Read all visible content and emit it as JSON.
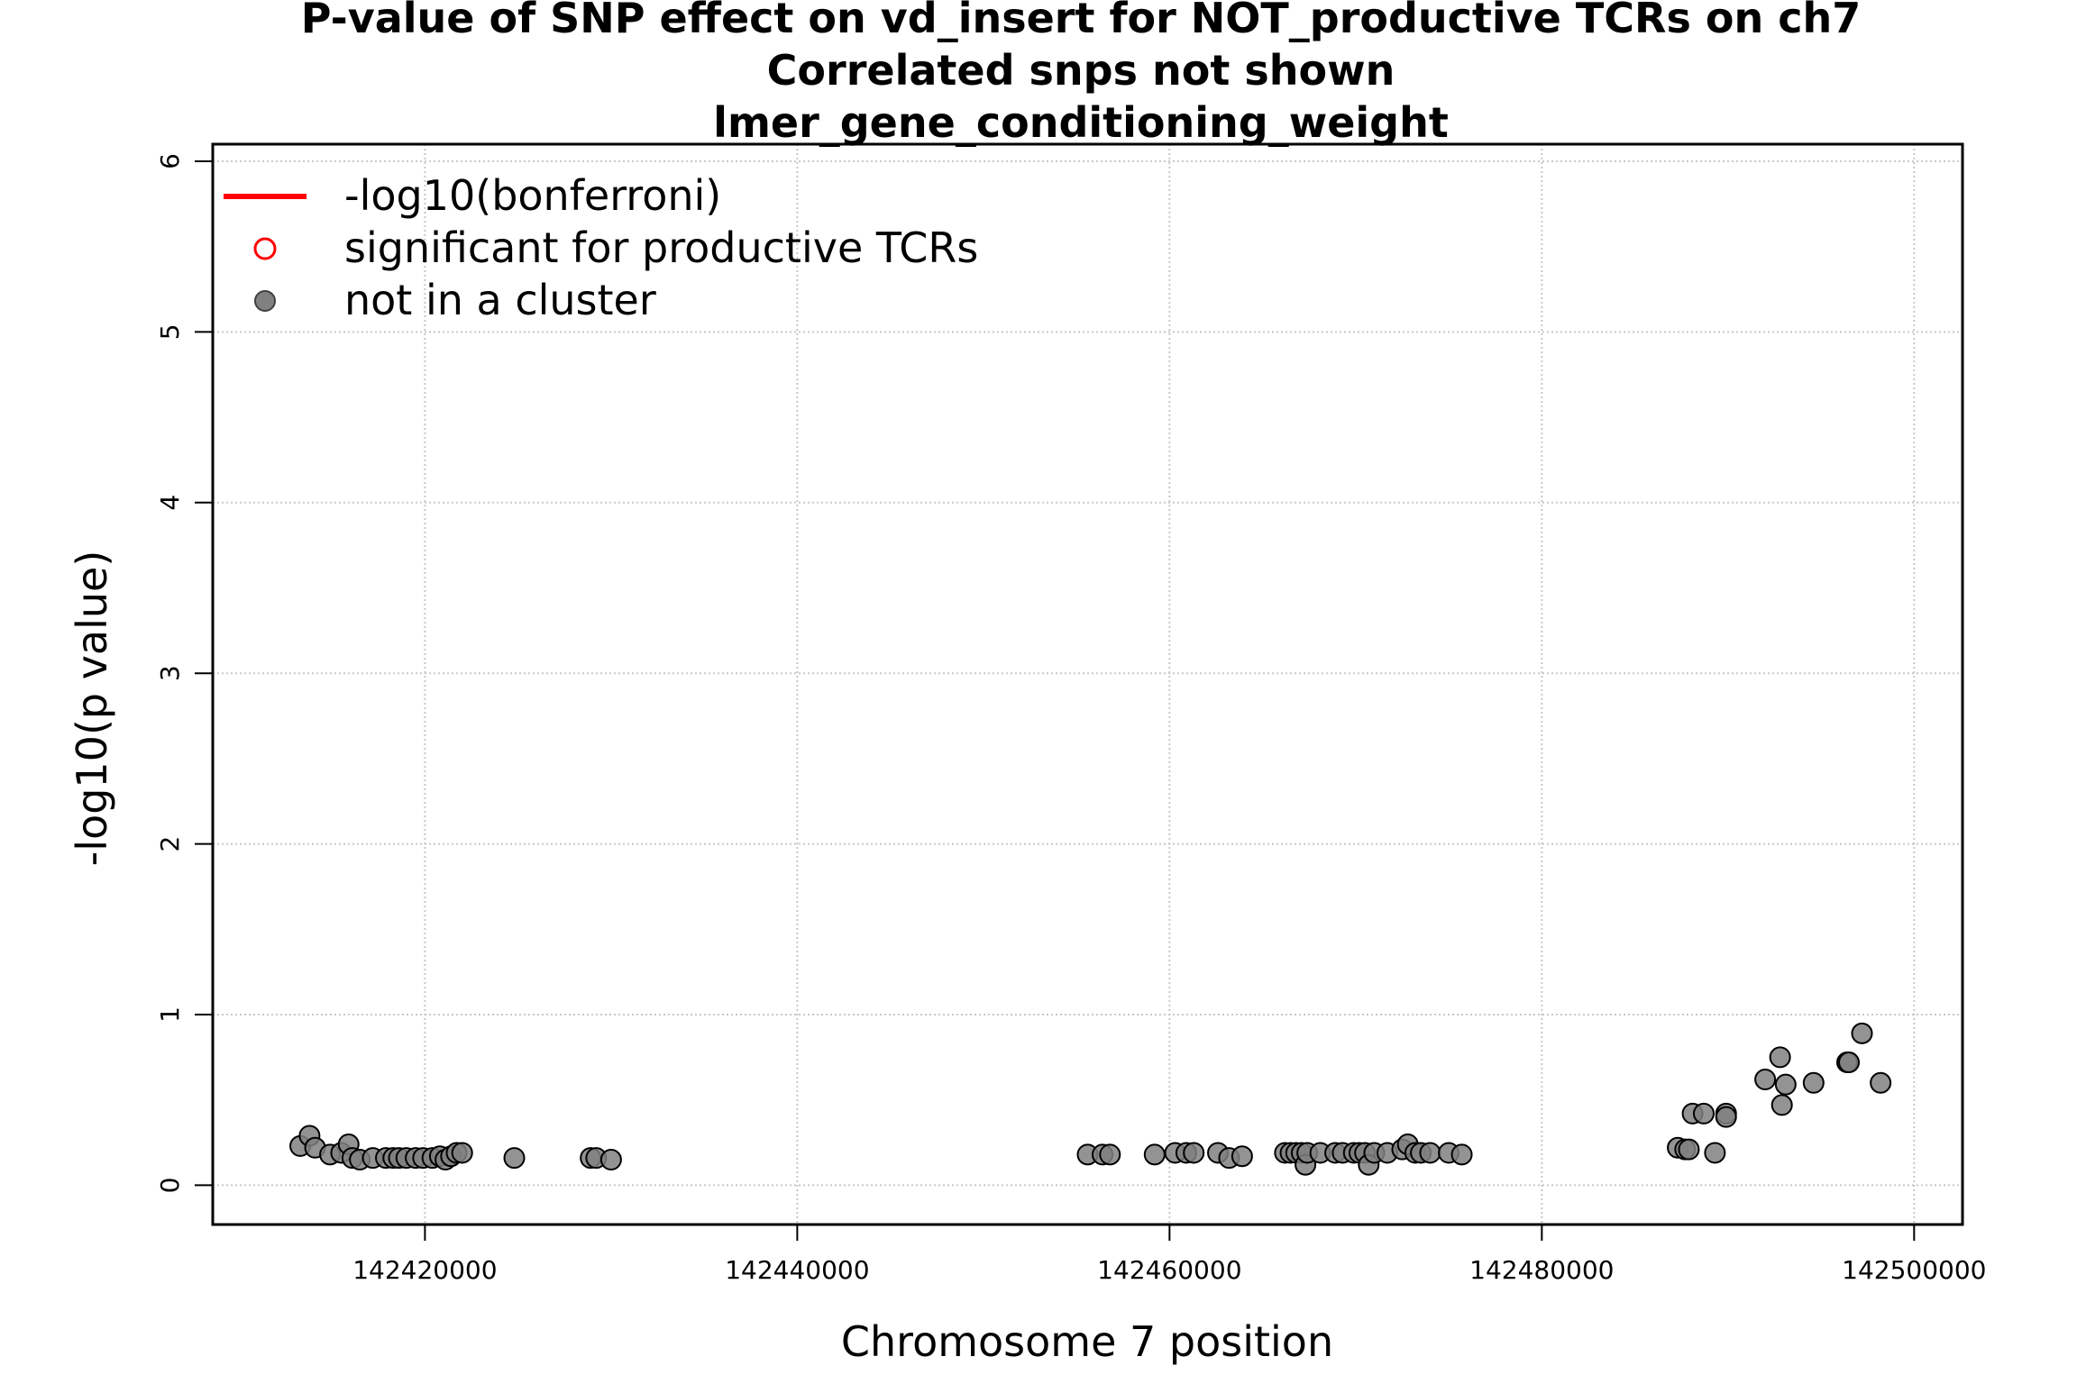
{
  "chart_data": {
    "type": "scatter",
    "title": [
      "P-value of SNP effect on vd_insert for NOT_productive TCRs on ch7",
      "Correlated snps not shown",
      "lmer_gene_conditioning_weight"
    ],
    "xlabel": "Chromosome 7 position",
    "ylabel": "-log10(p value)",
    "xlim": [
      142408600,
      142502600
    ],
    "ylim": [
      -0.23,
      6.1
    ],
    "x_ticks": [
      142420000,
      142440000,
      142460000,
      142480000,
      142500000
    ],
    "x_tick_labels": [
      "142420000",
      "142440000",
      "142460000",
      "142480000",
      "142500000"
    ],
    "y_ticks": [
      0,
      1,
      2,
      3,
      4,
      5,
      6
    ],
    "y_tick_labels": [
      "0",
      "1",
      "2",
      "3",
      "4",
      "5",
      "6"
    ],
    "grid": true,
    "legend_position": "top-left",
    "legend": [
      {
        "label": "-log10(bonferroni)",
        "type": "line",
        "color": "#ff0000"
      },
      {
        "label": "significant for productive TCRs",
        "type": "open-circle",
        "color": "#ff0000"
      },
      {
        "label": "not in a cluster",
        "type": "filled-circle",
        "color": "#808080"
      }
    ],
    "point_color": "#808080",
    "point_edge_color": "#000000",
    "series": [
      {
        "name": "not in a cluster",
        "points": [
          [
            142413300,
            0.23
          ],
          [
            142413800,
            0.29
          ],
          [
            142414100,
            0.22
          ],
          [
            142414900,
            0.18
          ],
          [
            142415500,
            0.19
          ],
          [
            142415900,
            0.24
          ],
          [
            142416100,
            0.16
          ],
          [
            142416500,
            0.15
          ],
          [
            142417200,
            0.16
          ],
          [
            142417900,
            0.16
          ],
          [
            142418300,
            0.16
          ],
          [
            142418600,
            0.16
          ],
          [
            142419000,
            0.16
          ],
          [
            142419500,
            0.16
          ],
          [
            142419900,
            0.16
          ],
          [
            142420400,
            0.16
          ],
          [
            142420800,
            0.17
          ],
          [
            142421100,
            0.15
          ],
          [
            142421400,
            0.17
          ],
          [
            142421700,
            0.19
          ],
          [
            142422000,
            0.19
          ],
          [
            142424800,
            0.16
          ],
          [
            142428900,
            0.16
          ],
          [
            142429200,
            0.16
          ],
          [
            142430000,
            0.15
          ],
          [
            142455600,
            0.18
          ],
          [
            142456400,
            0.18
          ],
          [
            142456800,
            0.18
          ],
          [
            142459200,
            0.18
          ],
          [
            142460300,
            0.19
          ],
          [
            142460900,
            0.19
          ],
          [
            142461300,
            0.19
          ],
          [
            142462600,
            0.19
          ],
          [
            142463200,
            0.16
          ],
          [
            142463900,
            0.17
          ],
          [
            142466200,
            0.19
          ],
          [
            142466500,
            0.19
          ],
          [
            142466800,
            0.19
          ],
          [
            142467100,
            0.19
          ],
          [
            142467300,
            0.12
          ],
          [
            142467400,
            0.19
          ],
          [
            142468100,
            0.19
          ],
          [
            142468900,
            0.19
          ],
          [
            142469300,
            0.19
          ],
          [
            142469900,
            0.19
          ],
          [
            142470200,
            0.19
          ],
          [
            142470500,
            0.19
          ],
          [
            142470700,
            0.12
          ],
          [
            142471000,
            0.19
          ],
          [
            142471700,
            0.19
          ],
          [
            142472500,
            0.21
          ],
          [
            142472800,
            0.24
          ],
          [
            142473200,
            0.19
          ],
          [
            142473500,
            0.19
          ],
          [
            142474000,
            0.19
          ],
          [
            142475000,
            0.19
          ],
          [
            142475700,
            0.18
          ],
          [
            142487300,
            0.22
          ],
          [
            142487700,
            0.21
          ],
          [
            142487900,
            0.21
          ],
          [
            142488100,
            0.42
          ],
          [
            142488700,
            0.42
          ],
          [
            142489300,
            0.19
          ],
          [
            142489900,
            0.42
          ],
          [
            142489900,
            0.4
          ],
          [
            142492000,
            0.62
          ],
          [
            142492800,
            0.75
          ],
          [
            142492900,
            0.47
          ],
          [
            142493100,
            0.59
          ],
          [
            142494600,
            0.6
          ],
          [
            142496400,
            0.72
          ],
          [
            142496500,
            0.72
          ],
          [
            142497200,
            0.89
          ],
          [
            142498200,
            0.6
          ]
        ]
      }
    ]
  }
}
